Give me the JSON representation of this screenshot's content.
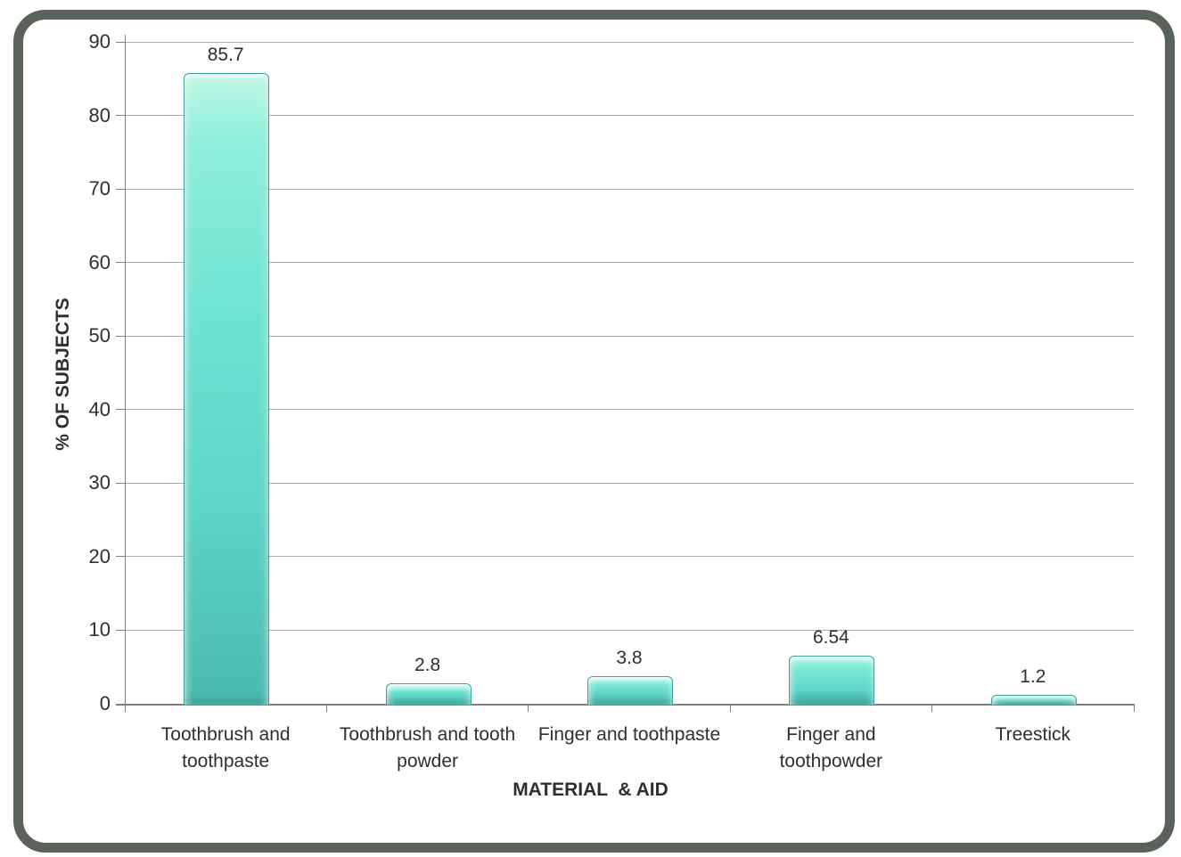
{
  "chart_data": {
    "type": "bar",
    "title": "",
    "categories": [
      "Toothbrush and\ntoothpaste",
      "Toothbrush and tooth\npowder",
      "Finger and toothpaste",
      "Finger and\ntoothpowder",
      "Treestick"
    ],
    "values": [
      85.7,
      2.8,
      3.8,
      6.54,
      1.2
    ],
    "data_labels": [
      "85.7",
      "2.8",
      "3.8",
      "6.54",
      "1.2"
    ],
    "xlabel": "MATERIAL  & AID",
    "ylabel": "% OF SUBJECTS",
    "ylim": [
      0,
      90
    ],
    "ytick_step": 10,
    "yticks": [
      0,
      10,
      20,
      30,
      40,
      50,
      60,
      70,
      80,
      90
    ],
    "grid": true,
    "legend": "none",
    "colors": {
      "background": "#ffffff",
      "frame_border": "#59635a",
      "gridline": "#a9aca7",
      "axis": "#808080",
      "text": "#2f2f2f",
      "bar_top": "#c2f7e4",
      "bar_mid": "#6fe3d2",
      "bar_bottom": "#49b9ae",
      "bar_border": "#3aa39a"
    }
  }
}
